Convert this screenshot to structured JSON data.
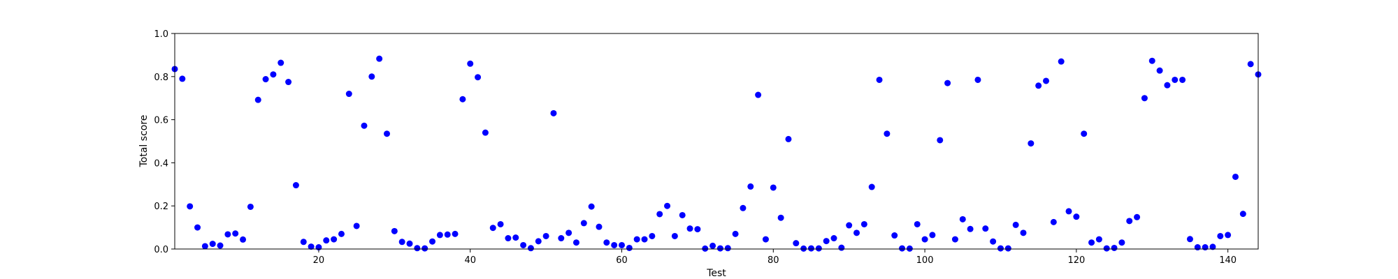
{
  "chart_data": {
    "type": "scatter",
    "title": "",
    "xlabel": "Test",
    "ylabel": "Total score",
    "xlim": [
      1,
      144
    ],
    "ylim": [
      0.0,
      1.0
    ],
    "xticks": [
      20,
      40,
      60,
      80,
      100,
      120,
      140
    ],
    "xtick_labels": [
      "20",
      "40",
      "60",
      "80",
      "100",
      "120",
      "140"
    ],
    "yticks": [
      0.0,
      0.2,
      0.4,
      0.6,
      0.8,
      1.0
    ],
    "ytick_labels": [
      "0.0",
      "0.2",
      "0.4",
      "0.6",
      "0.8",
      "1.0"
    ],
    "grid": false,
    "legend": "none",
    "marker_color": "#0000ff",
    "x": [
      1,
      2,
      3,
      4,
      5,
      6,
      7,
      8,
      9,
      10,
      11,
      12,
      13,
      14,
      15,
      16,
      17,
      18,
      19,
      20,
      21,
      22,
      23,
      24,
      25,
      26,
      27,
      28,
      29,
      30,
      31,
      32,
      33,
      34,
      35,
      36,
      37,
      38,
      39,
      40,
      41,
      42,
      43,
      44,
      45,
      46,
      47,
      48,
      49,
      50,
      51,
      52,
      53,
      54,
      55,
      56,
      57,
      58,
      59,
      60,
      61,
      62,
      63,
      64,
      65,
      66,
      67,
      68,
      69,
      70,
      71,
      72,
      73,
      74,
      75,
      76,
      77,
      78,
      79,
      80,
      81,
      82,
      83,
      84,
      85,
      86,
      87,
      88,
      89,
      90,
      91,
      92,
      93,
      94,
      95,
      96,
      97,
      98,
      99,
      100,
      101,
      102,
      103,
      104,
      105,
      106,
      107,
      108,
      109,
      110,
      111,
      112,
      113,
      114,
      115,
      116,
      117,
      118,
      119,
      120,
      121,
      122,
      123,
      124,
      125,
      126,
      127,
      128,
      129,
      130,
      131,
      132,
      133,
      134,
      135,
      136,
      137,
      138,
      139,
      140,
      141,
      142,
      143,
      144
    ],
    "y": [
      0.835,
      0.79,
      0.198,
      0.1,
      0.013,
      0.024,
      0.016,
      0.068,
      0.072,
      0.044,
      0.196,
      0.692,
      0.788,
      0.81,
      0.864,
      0.775,
      0.296,
      0.033,
      0.011,
      0.008,
      0.04,
      0.045,
      0.07,
      0.72,
      0.107,
      0.572,
      0.8,
      0.883,
      0.535,
      0.083,
      0.033,
      0.025,
      0.004,
      0.003,
      0.035,
      0.065,
      0.067,
      0.07,
      0.695,
      0.86,
      0.797,
      0.54,
      0.098,
      0.115,
      0.05,
      0.053,
      0.018,
      0.004,
      0.036,
      0.06,
      0.63,
      0.05,
      0.075,
      0.03,
      0.12,
      0.197,
      0.103,
      0.03,
      0.018,
      0.018,
      0.005,
      0.045,
      0.045,
      0.06,
      0.162,
      0.2,
      0.06,
      0.157,
      0.095,
      0.092,
      0.002,
      0.015,
      0.003,
      0.004,
      0.07,
      0.19,
      0.29,
      0.715,
      0.045,
      0.285,
      0.145,
      0.51,
      0.027,
      0.002,
      0.003,
      0.003,
      0.037,
      0.05,
      0.006,
      0.11,
      0.075,
      0.115,
      0.288,
      0.785,
      0.535,
      0.063,
      0.003,
      0.002,
      0.115,
      0.045,
      0.065,
      0.505,
      0.77,
      0.045,
      0.138,
      0.093,
      0.785,
      0.095,
      0.035,
      0.003,
      0.003,
      0.112,
      0.075,
      0.49,
      0.758,
      0.78,
      0.125,
      0.87,
      0.175,
      0.15,
      0.535,
      0.03,
      0.045,
      0.003,
      0.005,
      0.03,
      0.13,
      0.148,
      0.7,
      0.873,
      0.828,
      0.76,
      0.785,
      0.785,
      0.046,
      0.008,
      0.008,
      0.01,
      0.06,
      0.065,
      0.335,
      0.163,
      0.858,
      0.81
    ]
  }
}
